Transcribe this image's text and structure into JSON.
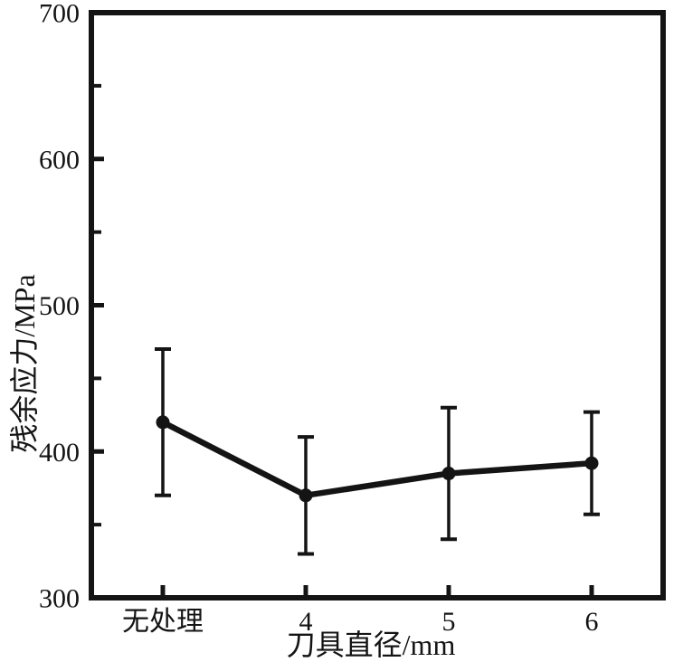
{
  "chart_data": {
    "type": "line",
    "title": "",
    "categories": [
      "无处理",
      "4",
      "5",
      "6"
    ],
    "series": [
      {
        "name": "残余应力",
        "values": [
          420,
          370,
          385,
          392
        ],
        "error_low": [
          370,
          330,
          340,
          357
        ],
        "error_high": [
          470,
          410,
          430,
          427
        ]
      }
    ],
    "xlabel": "刀具直径/mm",
    "ylabel": "残余应力/MPa",
    "ylim": [
      300,
      700
    ],
    "y_major_ticks": [
      300,
      400,
      500,
      600,
      700
    ],
    "y_minor_ticks": [
      350,
      450,
      550,
      650
    ],
    "grid": false,
    "legend_position": "none",
    "marker": "circle",
    "line_color": "#141414",
    "background_color": "#ffffff"
  }
}
